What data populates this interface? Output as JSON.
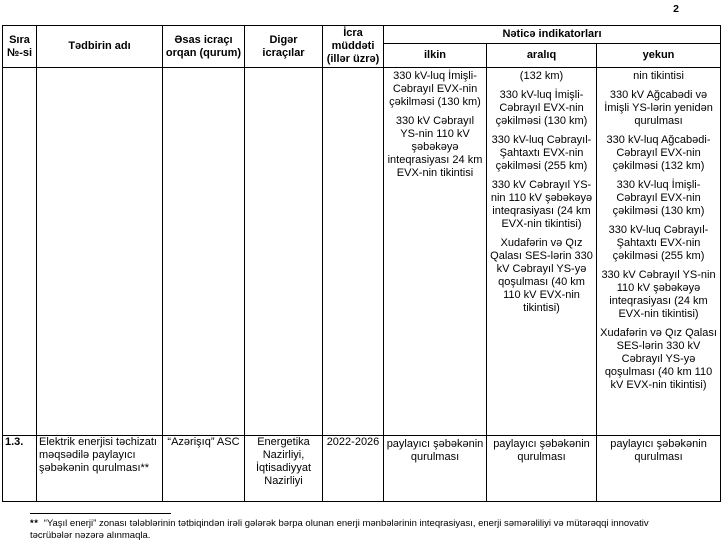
{
  "page_number": "2",
  "table": {
    "header": {
      "sira": "Sıra №-si",
      "tedbir": "Tədbirin adı",
      "esas_icraci": "Əsas icraçı orqan (qurum)",
      "diger_icracilar": "Digər icraçılar",
      "icra_muddeti": "İcra müddəti (illər üzrə)",
      "netice": "Nəticə indikatorları",
      "ilkin": "ilkin",
      "araliq": "aralıq",
      "yekun": "yekun"
    },
    "rows": [
      {
        "no": "",
        "name": "",
        "main_executor": "",
        "other_executors": "",
        "period": "",
        "ilkin_paragraphs": [
          "330 kV-luq İmişli-Cəbrayıl EVX-nin çəkilməsi (130 km)",
          "330 kV Cəbrayıl YS-nin 110 kV şəbəkəyə inteqrasiyası 24 km EVX-nin tikintisi"
        ],
        "araliq_paragraphs": [
          "(132 km)",
          "330 kV-luq İmişli-Cəbrayıl EVX-nin çəkilməsi (130 km)",
          "330 kV-luq Cəbrayıl- Şahtaxtı EVX-nin çəkilməsi (255 km)",
          "330 kV Cəbrayıl YS-nin 110 kV şəbəkəyə inteqrasiyası (24 km EVX-nin tikintisi)",
          "Xudafərin və Qız Qalası SES-lərin 330 kV Cəbrayıl YS-yə qoşulması (40 km 110 kV EVX-nin tikintisi)"
        ],
        "yekun_paragraphs": [
          "nin tikintisi",
          "330 kV Ağcabədi və İmişli YS-lərin yenidən qurulması",
          "330 kV-luq Ağcabədi-Cəbrayıl EVX-nin çəkilməsi (132 km)",
          "330 kV-luq İmişli-Cəbrayıl EVX-nin çəkilməsi (130 km)",
          "330 kV-luq Cəbrayıl-Şahtaxtı EVX-nin çəkilməsi (255 km)",
          "330 kV Cəbrayıl YS-nin 110 kV şəbəkəyə inteqrasiyası (24 km EVX-nin tikintisi)",
          "Xudafərin və Qız Qalası SES-lərin 330 kV Cəbrayıl YS-yə qoşulması (40 km 110 kV EVX-nin tikintisi)"
        ]
      },
      {
        "no": "1.3.",
        "name": "Elektrik enerjisi təchizatı məqsədilə paylayıcı şəbəkənin qurulması**",
        "main_executor": "“Azərişıq” ASC",
        "other_executors": "Energetika Nazirliyi, İqtisadiyyat Nazirliyi",
        "period": "2022-2026",
        "ilkin_paragraphs": [
          "paylayıcı şəbəkənin qurulması"
        ],
        "araliq_paragraphs": [
          "paylayıcı şəbəkənin qurulması"
        ],
        "yekun_paragraphs": [
          "paylayıcı şəbəkənin qurulması"
        ]
      }
    ]
  },
  "footnote": {
    "marker": "**",
    "text": "“Yaşıl enerji” zonası tələblərinin tətbiqindən irəli gələrək bərpa olunan enerji mənbələrinin inteqrasiyası, enerji səmərəliliyi və mütərəqqi innovativ təcrübələr nəzərə alınmaqla."
  }
}
